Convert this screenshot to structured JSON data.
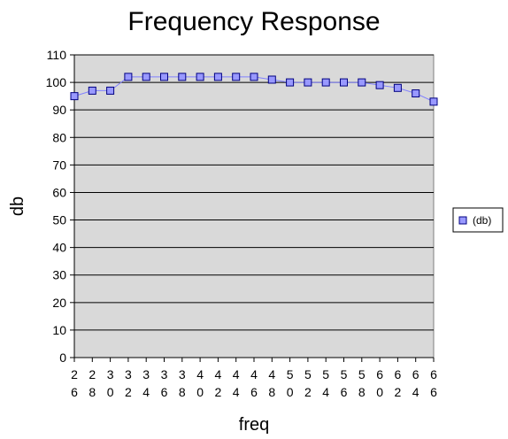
{
  "chart_data": {
    "type": "line",
    "title": "Frequency Response",
    "xlabel": "freq",
    "ylabel": "db",
    "categories": [
      "26",
      "28",
      "30",
      "32",
      "34",
      "36",
      "38",
      "40",
      "42",
      "44",
      "46",
      "48",
      "50",
      "52",
      "54",
      "56",
      "58",
      "60",
      "62",
      "64",
      "66"
    ],
    "series": [
      {
        "name": "(db)",
        "values": [
          95,
          97,
          97,
          102,
          102,
          102,
          102,
          102,
          102,
          102,
          102,
          101,
          100,
          100,
          100,
          100,
          100,
          99,
          98,
          96,
          93
        ]
      }
    ],
    "ylim": [
      0,
      110
    ],
    "yticks": [
      0,
      10,
      20,
      30,
      40,
      50,
      60,
      70,
      80,
      90,
      100,
      110
    ],
    "grid": true,
    "legend_position": "right",
    "colors": {
      "plot_background": "#d9d9d9",
      "gridline": "#000000",
      "series_line": "#8080ff",
      "marker_fill": "#9999ff",
      "marker_stroke": "#000080"
    }
  }
}
